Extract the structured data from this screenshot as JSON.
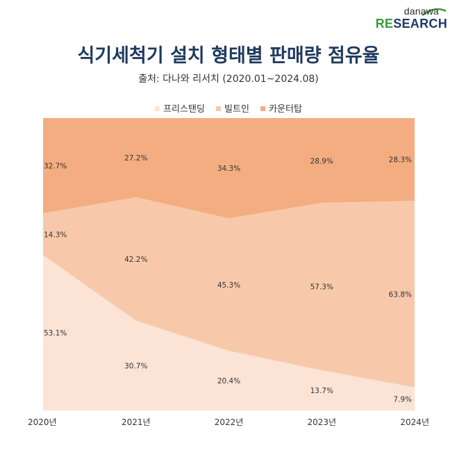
{
  "logo": {
    "top": "danawa",
    "re": "RE",
    "rest": "SEARCH"
  },
  "colors": {
    "title": "#1f3a5f",
    "freestanding": "#fbe3d6",
    "builtin": "#f7c9aa",
    "countertop": "#f3ad80"
  },
  "chart_data": {
    "type": "area",
    "stacked": true,
    "normalized": true,
    "title": "식기세척기 설치 형태별 판매량 점유율",
    "subtitle": "출처: 다나와 리서치 (2020.01~2024.08)",
    "categories": [
      "2020년",
      "2021년",
      "2022년",
      "2023년",
      "2024년"
    ],
    "ylim": [
      0,
      100
    ],
    "legend_position": "top",
    "series": [
      {
        "name": "프리스탠딩",
        "values": [
          53.1,
          30.7,
          20.4,
          13.7,
          7.9
        ],
        "labels": [
          "53.1%",
          "30.7%",
          "20.4%",
          "13.7%",
          "7.9%"
        ]
      },
      {
        "name": "빌트인",
        "values": [
          14.3,
          42.2,
          45.3,
          57.3,
          63.8
        ],
        "labels": [
          "14.3%",
          "42.2%",
          "45.3%",
          "57.3%",
          "63.8%"
        ]
      },
      {
        "name": "카운터탑",
        "values": [
          32.7,
          27.2,
          34.3,
          28.9,
          28.3
        ],
        "labels": [
          "32.7%",
          "27.2%",
          "34.3%",
          "28.9%",
          "28.3%"
        ]
      }
    ]
  }
}
